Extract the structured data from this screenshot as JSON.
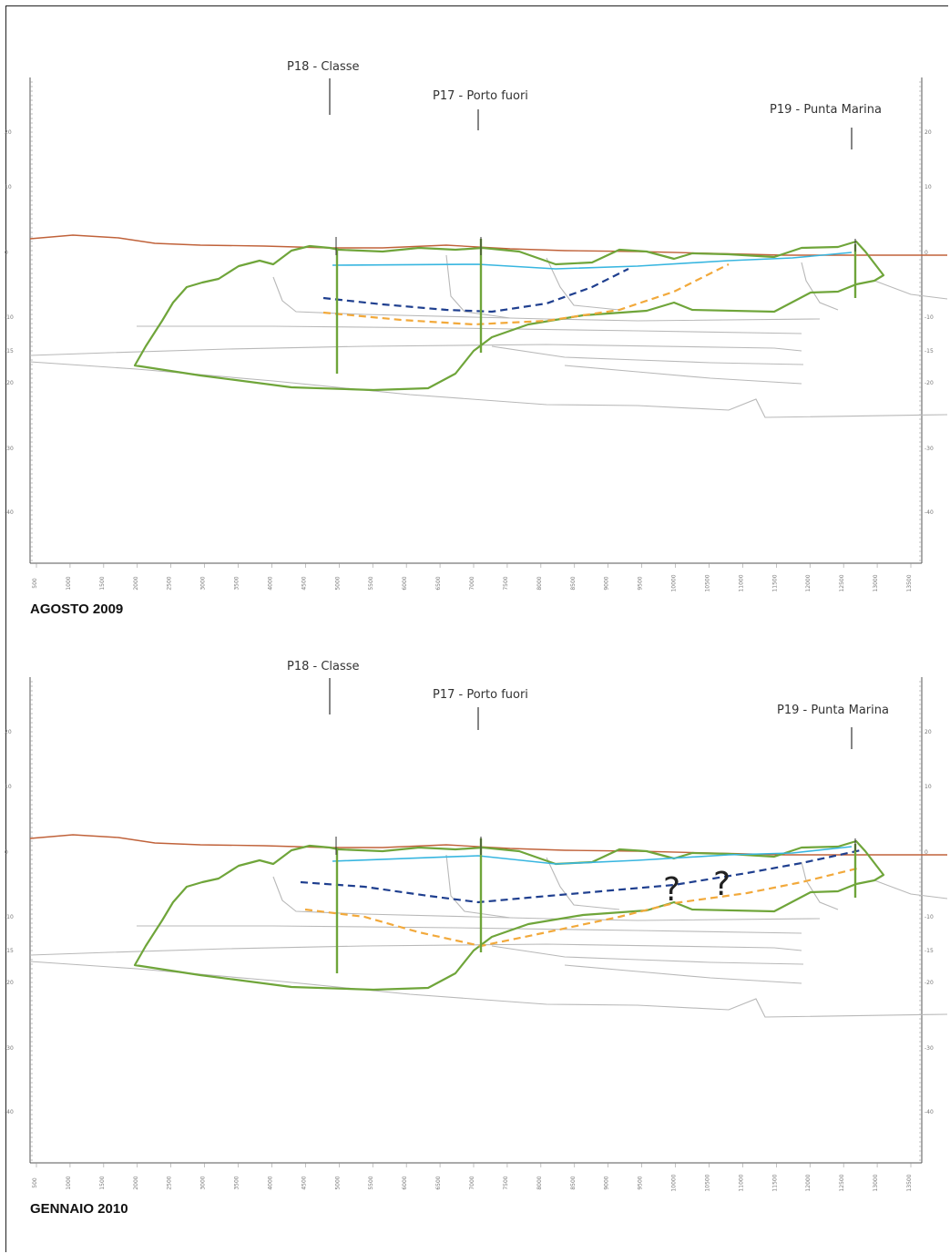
{
  "panels": [
    {
      "id": "panel-1",
      "caption": "AGOSTO 2009",
      "well_labels": [
        "P18 - Classe",
        "P17 - Porto fuori",
        "P19 - Punta Marina"
      ],
      "y_ticks": [
        "20",
        "10",
        "0",
        "-10",
        "-15",
        "-20",
        "-30",
        "-40"
      ],
      "x_ticks": [
        "500",
        "1000",
        "1500",
        "2000",
        "2500",
        "3000",
        "3500",
        "4000",
        "4500",
        "5000",
        "5500",
        "6000",
        "6500",
        "7000",
        "7500",
        "8000",
        "8500",
        "9000",
        "9500",
        "10000",
        "10500",
        "11000",
        "11500",
        "12000",
        "12500",
        "13000",
        "13500"
      ],
      "question_marks": []
    },
    {
      "id": "panel-2",
      "caption": "GENNAIO 2010",
      "well_labels": [
        "P18 - Classe",
        "P17 - Porto fuori",
        "P19 - Punta Marina"
      ],
      "y_ticks": [
        "20",
        "10",
        "0",
        "-10",
        "-15",
        "-20",
        "-30",
        "-40"
      ],
      "x_ticks": [
        "500",
        "1000",
        "1500",
        "2000",
        "2500",
        "3000",
        "3500",
        "4000",
        "4500",
        "5000",
        "5500",
        "6000",
        "6500",
        "7000",
        "7500",
        "8000",
        "8500",
        "9000",
        "9500",
        "10000",
        "10500",
        "11000",
        "11500",
        "12000",
        "12500",
        "13000",
        "13500"
      ],
      "question_marks": [
        "?",
        "?"
      ]
    }
  ],
  "colors": {
    "ground_surface": "#c0623a",
    "aquifer_outline": "#6fa53a",
    "water_table": "#38b6e0",
    "blue_dashed": "#1f3f8f",
    "orange_dashed": "#f2a93b",
    "layer_lines": "#b8b8b8",
    "axis": "#555555"
  }
}
